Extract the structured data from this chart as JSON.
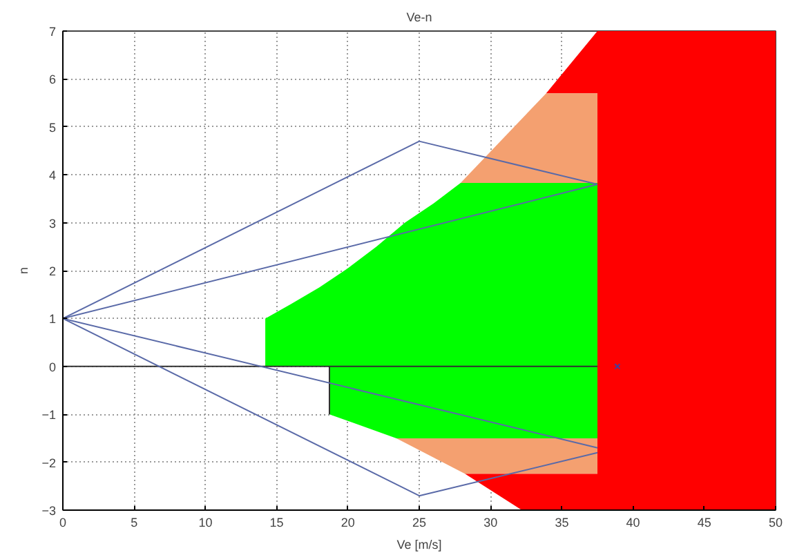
{
  "chart_data": {
    "type": "line",
    "title": "Ve-n",
    "xlabel": "Ve [m/s]",
    "ylabel": "n",
    "xlim": [
      0,
      50
    ],
    "ylim": [
      -3,
      7
    ],
    "xticks": [
      0,
      5,
      10,
      15,
      20,
      25,
      30,
      35,
      40,
      45,
      50
    ],
    "yticks": [
      -3,
      -2,
      -1,
      0,
      1,
      2,
      3,
      4,
      5,
      6,
      7
    ],
    "grid": true,
    "series": [
      {
        "type": "area",
        "color": "#ff0000",
        "x": [
          33.9,
          37.5,
          50,
          50,
          32.2,
          28.2,
          37.5,
          37.5
        ],
        "values": [
          5.7,
          7,
          7,
          -3,
          -3,
          -2.24,
          -2.24,
          5.7
        ]
      },
      {
        "type": "area",
        "color": "#f4a070",
        "x": [
          27.9,
          33.9,
          37.5,
          37.5
        ],
        "values": [
          3.83,
          5.7,
          5.7,
          3.83
        ]
      },
      {
        "type": "area",
        "color": "#f4a070",
        "x": [
          23.4,
          37.5,
          37.5,
          28.2
        ],
        "values": [
          -1.5,
          -1.5,
          -2.24,
          -2.24
        ]
      },
      {
        "type": "area",
        "color": "#00ff00",
        "x": [
          14.2,
          14.2,
          16,
          18,
          20,
          22,
          24,
          26,
          27.9,
          37.5,
          37.5,
          23.4,
          18.7,
          18.7
        ],
        "values": [
          0,
          1,
          1.3,
          1.65,
          2.05,
          2.5,
          3.0,
          3.4,
          3.83,
          3.83,
          -1.5,
          -1.5,
          -1,
          0
        ]
      },
      {
        "color": "#303030",
        "x": [
          0,
          37.5
        ],
        "values": [
          0,
          0
        ]
      },
      {
        "color": "#303030",
        "x": [
          18.7,
          18.7
        ],
        "values": [
          0,
          -1
        ]
      },
      {
        "color": "#5a6aa8",
        "x": [
          0,
          25,
          37.5
        ],
        "values": [
          1,
          4.7,
          3.8
        ]
      },
      {
        "color": "#5a6aa8",
        "x": [
          0,
          37.5
        ],
        "values": [
          1,
          3.8
        ]
      },
      {
        "color": "#5a6aa8",
        "x": [
          0,
          25,
          37.5
        ],
        "values": [
          1,
          -2.7,
          -1.8
        ]
      },
      {
        "color": "#5a6aa8",
        "x": [
          0,
          37.5
        ],
        "values": [
          1,
          -1.7
        ]
      },
      {
        "type": "scatter",
        "marker": "cross",
        "color": "#4040a0",
        "x": [
          38.9
        ],
        "values": [
          0
        ]
      }
    ]
  }
}
